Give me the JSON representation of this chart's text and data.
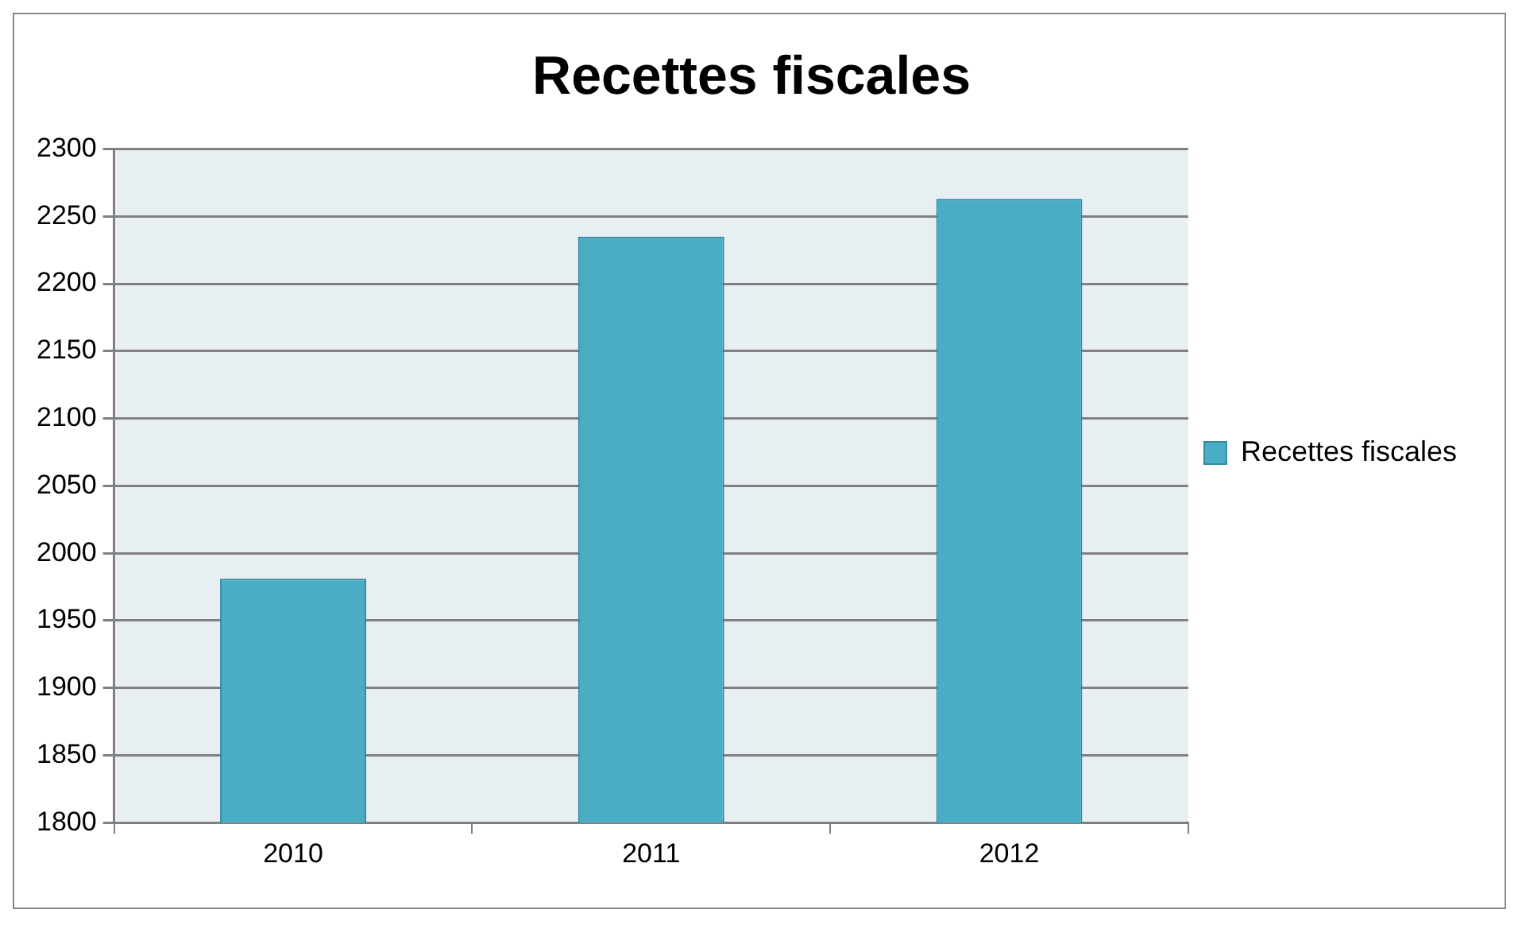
{
  "chart_data": {
    "type": "bar",
    "title": "Recettes fiscales",
    "categories": [
      "2010",
      "2011",
      "2012"
    ],
    "series": [
      {
        "name": "Recettes fiscales",
        "color": "#4bacc6",
        "values": [
          1981,
          2235,
          2263
        ]
      }
    ],
    "ylim": [
      1800,
      2300
    ],
    "yticks": [
      1800,
      1850,
      1900,
      1950,
      2000,
      2050,
      2100,
      2150,
      2200,
      2250,
      2300
    ],
    "grid": "y",
    "legend": "right"
  }
}
